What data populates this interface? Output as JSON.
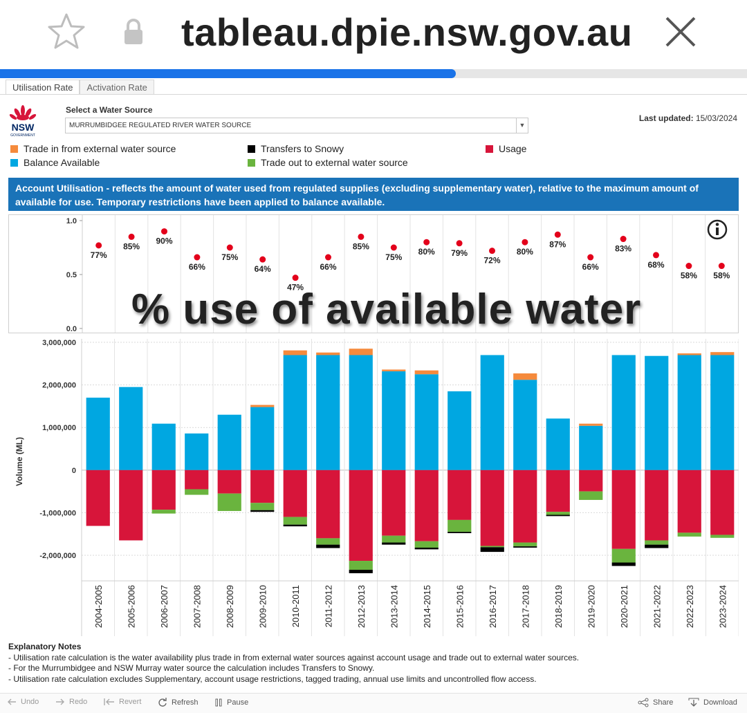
{
  "browser": {
    "url": "tableau.dpie.nsw.gov.au",
    "load_progress": 0.61
  },
  "tabs": [
    {
      "label": "Utilisation Rate",
      "active": true
    },
    {
      "label": "Activation Rate",
      "active": false
    }
  ],
  "header": {
    "logo_text": "NSW",
    "logo_subtext": "GOVERNMENT",
    "select_label": "Select a Water Source",
    "select_value": "MURRUMBIDGEE REGULATED RIVER WATER SOURCE",
    "updated_label": "Last updated:",
    "updated_value": "15/03/2024"
  },
  "legend": [
    {
      "label": "Trade in from external water source",
      "color": "#f58a3c"
    },
    {
      "label": "Balance Available",
      "color": "#00a7e1"
    },
    {
      "label": "Transfers to Snowy",
      "color": "#000000"
    },
    {
      "label": "Trade out to external water source",
      "color": "#6ab43e"
    },
    {
      "label": "Usage",
      "color": "#d7153a"
    }
  ],
  "banner": "Account Utilisation - reflects the amount of water used from regulated supplies (excluding supplementary water), relative to the maximum amount of available for use. Temporary restrictions have been applied to balance available.",
  "overlay_text": "% use of available water",
  "chart_data": [
    {
      "type": "scatter",
      "title": "Utilisation rate",
      "categories": [
        "2004-2005",
        "2005-2006",
        "2006-2007",
        "2007-2008",
        "2008-2009",
        "2009-2010",
        "2010-2011",
        "2011-2012",
        "2012-2013",
        "2013-2014",
        "2014-2015",
        "2015-2016",
        "2016-2017",
        "2017-2018",
        "2018-2019",
        "2019-2020",
        "2020-2021",
        "2021-2022",
        "2022-2023",
        "2023-2024"
      ],
      "values": [
        0.77,
        0.85,
        0.9,
        0.66,
        0.75,
        0.64,
        0.47,
        0.66,
        0.85,
        0.75,
        0.8,
        0.79,
        0.72,
        0.8,
        0.87,
        0.66,
        0.83,
        0.68,
        0.58,
        0.58
      ],
      "labels": [
        "77%",
        "85%",
        "90%",
        "66%",
        "75%",
        "64%",
        "47%",
        "66%",
        "85%",
        "75%",
        "80%",
        "79%",
        "72%",
        "80%",
        "87%",
        "66%",
        "83%",
        "68%",
        "58%",
        "58%"
      ],
      "yticks": [
        "1.0",
        "0.5",
        "0.0"
      ],
      "ylim": [
        0,
        1.0
      ],
      "color": "#e3001b"
    },
    {
      "type": "bar",
      "stacked": true,
      "ylabel": "Volume (ML)",
      "ylim": [
        -2600000,
        3000000
      ],
      "yticks": [
        3000000,
        2000000,
        1000000,
        0,
        -1000000,
        -2000000
      ],
      "ytick_labels": [
        "3,000,000",
        "2,000,000",
        "1,000,000",
        "0",
        "-1,000,000",
        "-2,000,000"
      ],
      "categories": [
        "2004-2005",
        "2005-2006",
        "2006-2007",
        "2007-2008",
        "2008-2009",
        "2009-2010",
        "2010-2011",
        "2011-2012",
        "2012-2013",
        "2013-2014",
        "2014-2015",
        "2015-2016",
        "2016-2017",
        "2017-2018",
        "2018-2019",
        "2019-2020",
        "2020-2021",
        "2021-2022",
        "2022-2023",
        "2023-2024"
      ],
      "series": [
        {
          "name": "Balance Available",
          "color": "#00a7e1",
          "values": [
            1700000,
            1950000,
            1090000,
            860000,
            1300000,
            1480000,
            2700000,
            2700000,
            2700000,
            2320000,
            2250000,
            1850000,
            2700000,
            2120000,
            1210000,
            1040000,
            2700000,
            2680000,
            2700000,
            2700000
          ]
        },
        {
          "name": "Trade in from external water source",
          "color": "#f58a3c",
          "values": [
            0,
            0,
            0,
            0,
            0,
            50000,
            110000,
            60000,
            150000,
            40000,
            90000,
            0,
            0,
            150000,
            0,
            50000,
            0,
            0,
            40000,
            70000
          ]
        },
        {
          "name": "Usage",
          "color": "#d7153a",
          "values": [
            -1310000,
            -1650000,
            -930000,
            -450000,
            -550000,
            -770000,
            -1100000,
            -1600000,
            -2130000,
            -1540000,
            -1670000,
            -1170000,
            -1780000,
            -1700000,
            -980000,
            -500000,
            -1850000,
            -1650000,
            -1470000,
            -1520000
          ]
        },
        {
          "name": "Trade out to external water source",
          "color": "#6ab43e",
          "values": [
            0,
            0,
            -90000,
            -130000,
            -410000,
            -170000,
            -180000,
            -150000,
            -210000,
            -160000,
            -150000,
            -280000,
            -30000,
            -90000,
            -70000,
            -200000,
            -320000,
            -100000,
            -90000,
            -70000
          ]
        },
        {
          "name": "Transfers to Snowy",
          "color": "#000000",
          "values": [
            0,
            0,
            0,
            0,
            0,
            -40000,
            -40000,
            -80000,
            -80000,
            -50000,
            -40000,
            -30000,
            -110000,
            -30000,
            -30000,
            0,
            -80000,
            -80000,
            0,
            0
          ]
        }
      ]
    }
  ],
  "notes": {
    "title": "Explanatory Notes",
    "lines": [
      "- Utilisation rate calculation is the water availability plus trade in from external water sources against account usage and trade out to external water sources.",
      "- For the Murrumbidgee and NSW Murray water source the calculation includes Transfers to Snowy.",
      "- Utilisation rate calculation excludes Supplementary, account usage restrictions, tagged trading, annual use limits and uncontrolled flow access."
    ]
  },
  "toolbar": {
    "undo": "Undo",
    "redo": "Redo",
    "revert": "Revert",
    "refresh": "Refresh",
    "pause": "Pause",
    "share": "Share",
    "download": "Download"
  }
}
